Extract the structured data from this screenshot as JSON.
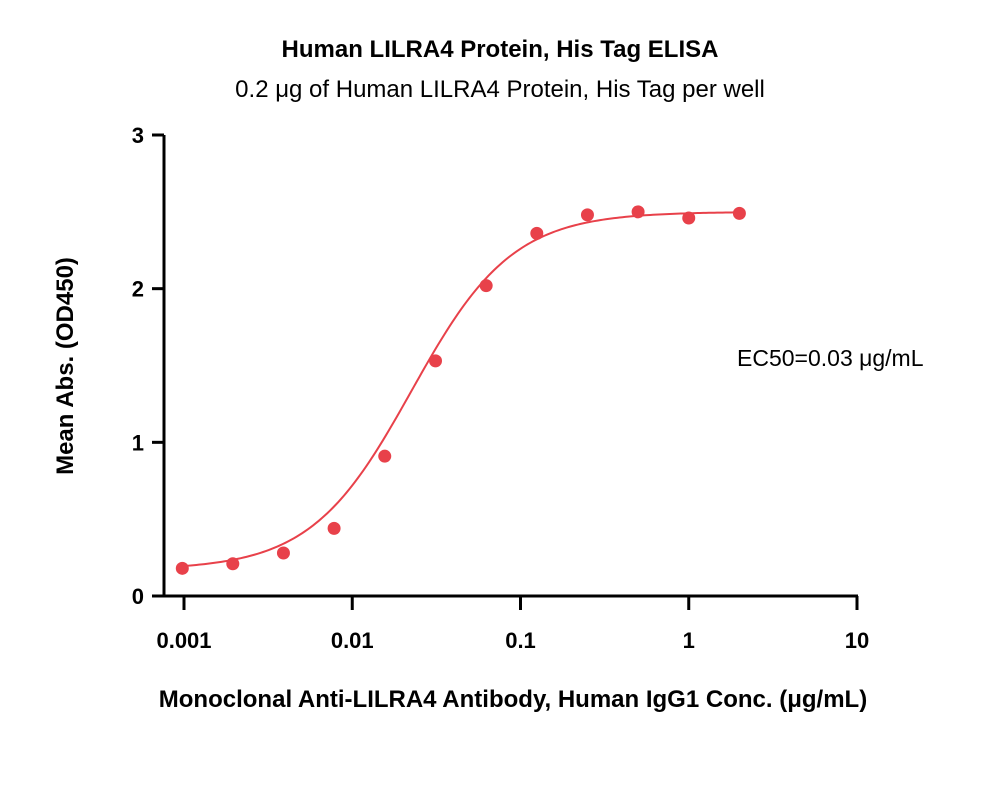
{
  "chart_data": {
    "type": "scatter",
    "title": "Human LILRA4 Protein, His Tag ELISA",
    "subtitle": "0.2 μg of Human LILRA4 Protein, His Tag per well",
    "xlabel": "Monoclonal Anti-LILRA4 Antibody, Human IgG1 Conc. (μg/mL)",
    "ylabel": "Mean Abs. (OD450)",
    "xscale": "log",
    "xlim": [
      0.001,
      10
    ],
    "ylim": [
      0,
      3
    ],
    "x_ticks": [
      "0.001",
      "0.01",
      "0.1",
      "1",
      "10"
    ],
    "y_ticks": [
      "0",
      "1",
      "2",
      "3"
    ],
    "annotation": "EC50=0.03 μg/mL",
    "series": [
      {
        "color": "#e8414a",
        "fit": "4PL",
        "x": [
          0.000977,
          0.00195,
          0.0039,
          0.0078,
          0.0156,
          0.03125,
          0.0625,
          0.125,
          0.25,
          0.5,
          1,
          2
        ],
        "y": [
          0.18,
          0.21,
          0.28,
          0.44,
          0.91,
          1.53,
          2.02,
          2.36,
          2.48,
          2.5,
          2.46,
          2.49
        ]
      }
    ]
  }
}
